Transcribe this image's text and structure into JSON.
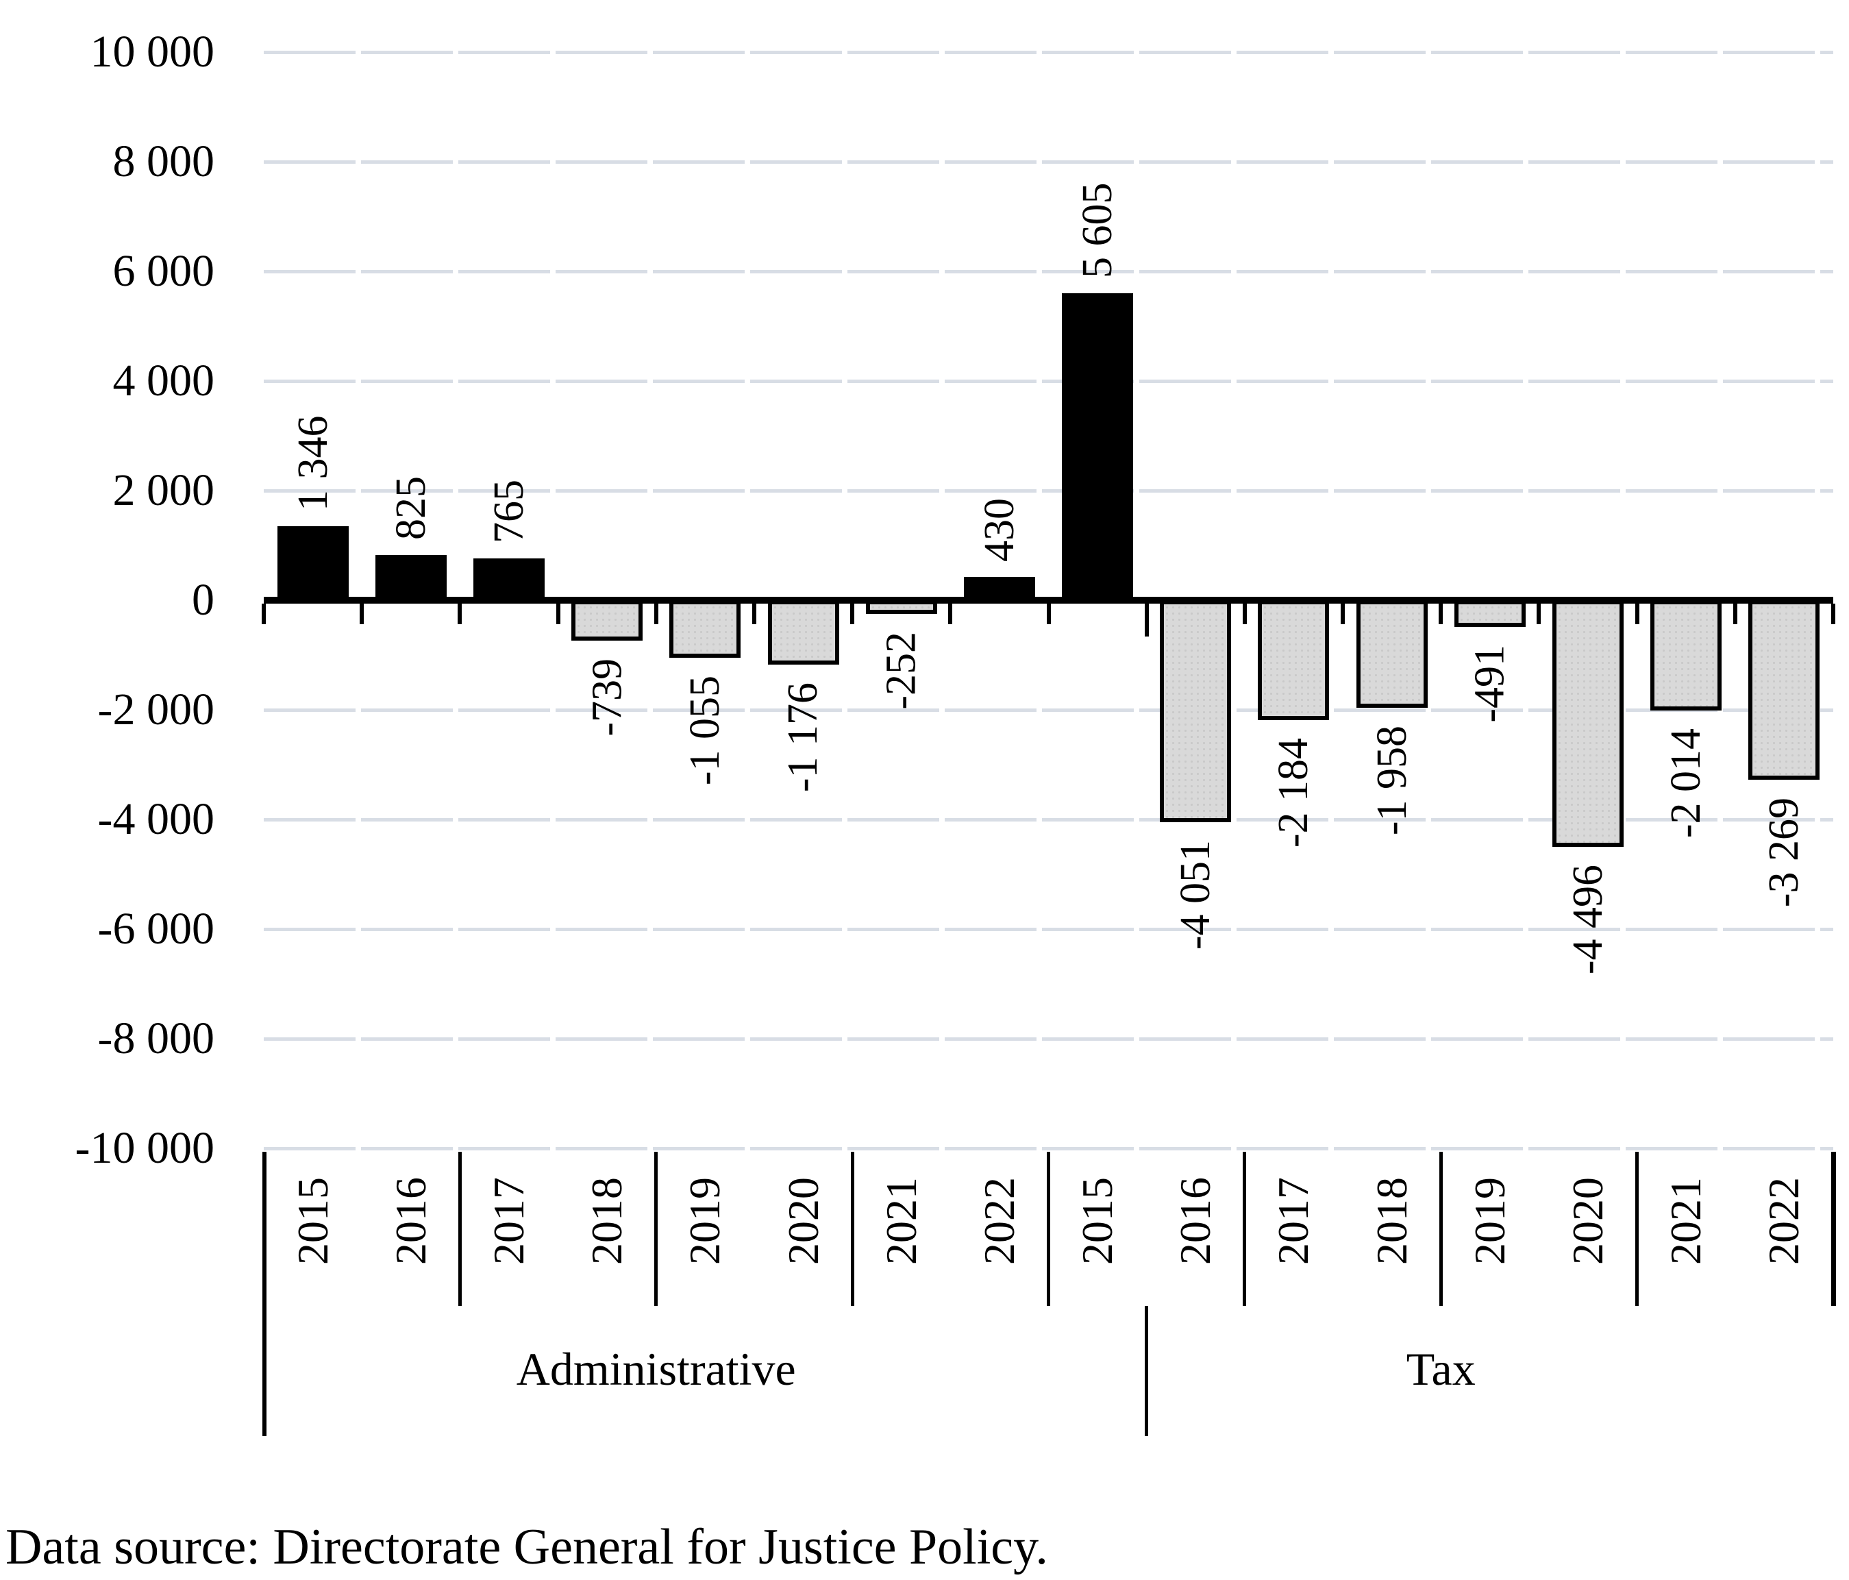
{
  "chart_data": {
    "type": "bar",
    "title": "",
    "ylim": [
      -10000,
      10000
    ],
    "ytick_step": 2000,
    "yticks": [
      {
        "value": 10000,
        "label": "10 000"
      },
      {
        "value": 8000,
        "label": "8 000"
      },
      {
        "value": 6000,
        "label": "6 000"
      },
      {
        "value": 4000,
        "label": "4 000"
      },
      {
        "value": 2000,
        "label": "2 000"
      },
      {
        "value": 0,
        "label": "0"
      },
      {
        "value": -2000,
        "label": "-2 000"
      },
      {
        "value": -4000,
        "label": "-4 000"
      },
      {
        "value": -6000,
        "label": "-6 000"
      },
      {
        "value": -8000,
        "label": "-8 000"
      },
      {
        "value": -10000,
        "label": "-10 000"
      }
    ],
    "grid": true,
    "legend": false,
    "groups": [
      {
        "label": "Administrative",
        "years": [
          "2015",
          "2016",
          "2017",
          "2018",
          "2019",
          "2020",
          "2021",
          "2022"
        ],
        "values": [
          1346,
          825,
          765,
          -739,
          -1055,
          -1176,
          -252,
          430
        ],
        "value_labels": [
          "1 346",
          "825",
          "765",
          "-739",
          "-1 055",
          "-1 176",
          "-252",
          "430"
        ]
      },
      {
        "label": "Tax",
        "years": [
          "2015",
          "2016",
          "2017",
          "2018",
          "2019",
          "2020",
          "2021",
          "2022"
        ],
        "values": [
          5605,
          -4051,
          -2184,
          -1958,
          -491,
          -4496,
          -2014,
          -3269
        ],
        "value_labels": [
          "5 605",
          "-4 051",
          "-2 184",
          "-1 958",
          "-491",
          "-4 496",
          "-2 014",
          "-3 269"
        ]
      }
    ]
  },
  "styles": {
    "positive_bar_color": "#000000",
    "negative_bar_fill": "#d9d9d9",
    "negative_bar_dot": "#c9c9c9",
    "bar_border_color": "#000000",
    "gridline_color": "#d8dde5",
    "axis_color": "#000000"
  },
  "footer": {
    "source_text": "Data source: Directorate General for Justice Policy."
  }
}
